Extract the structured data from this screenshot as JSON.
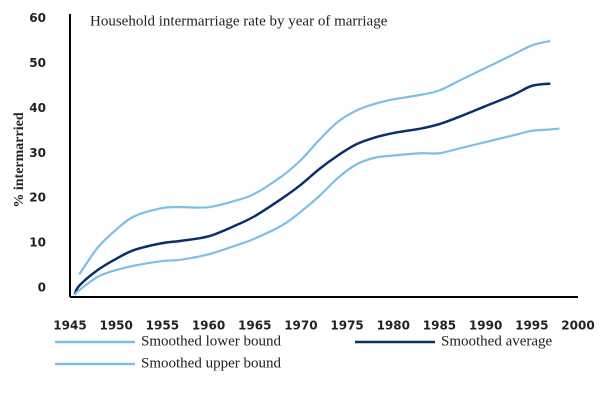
{
  "chart_data": {
    "type": "line",
    "title": "Household intermarriage rate by year of marriage",
    "y_label": "% intermarried",
    "x": [
      1945.5,
      1946,
      1948,
      1950,
      1952,
      1955,
      1957,
      1960,
      1963,
      1965,
      1968,
      1970,
      1972,
      1974,
      1976,
      1978,
      1980,
      1983,
      1985,
      1987,
      1990,
      1993,
      1995,
      1997,
      1998
    ],
    "series": [
      {
        "name": "Smoothed lower bound",
        "color": "#7dbfe6",
        "values": [
          null,
          3,
          9,
          13,
          16,
          17.8,
          18,
          18,
          19.5,
          21,
          25,
          28.5,
          33,
          37,
          39.5,
          41,
          42,
          43,
          44,
          46,
          49,
          52,
          54,
          55,
          null
        ]
      },
      {
        "name": "Smoothed average",
        "color": "#0b2f6b",
        "values": [
          -1.5,
          0.5,
          4,
          6.5,
          8.5,
          10,
          10.5,
          11.5,
          14,
          16,
          20,
          23,
          26.5,
          29.5,
          32,
          33.5,
          34.5,
          35.5,
          36.5,
          38,
          40.5,
          43,
          45,
          45.5,
          null
        ]
      },
      {
        "name": "Smoothed upper bound",
        "color": "#7dbfe6",
        "values": [
          -1.5,
          -0.5,
          2.5,
          4,
          5,
          6,
          6.3,
          7.5,
          9.5,
          11,
          14,
          17,
          20.5,
          24.5,
          27.5,
          29,
          29.5,
          30,
          30,
          31,
          32.5,
          34,
          35,
          35.3,
          35.5
        ]
      }
    ],
    "xlim": [
      1945,
      2000
    ],
    "xticks": [
      1945,
      1950,
      1955,
      1960,
      1965,
      1970,
      1975,
      1980,
      1985,
      1990,
      1995,
      2000
    ],
    "ylim": [
      -2,
      61
    ],
    "yticks": [
      0,
      10,
      20,
      30,
      40,
      50,
      60
    ]
  }
}
